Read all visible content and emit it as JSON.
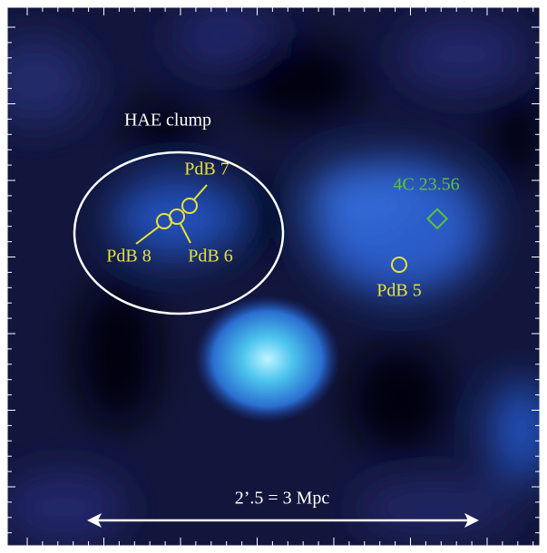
{
  "annotations": {
    "clump": "HAE clump",
    "pdb7": "PdB 7",
    "pdb8": "PdB 8",
    "pdb6": "PdB 6",
    "pdb5": "PdB 5",
    "radio_source": "4C 23.56",
    "scale_bar": "2’.5 = 3 Mpc"
  }
}
